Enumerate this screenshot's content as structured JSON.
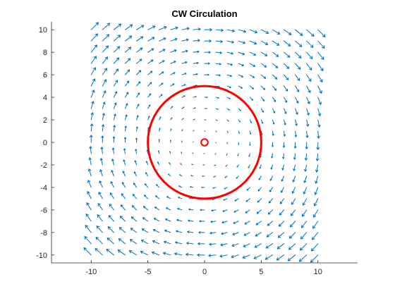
{
  "chart_data": {
    "type": "quiver",
    "title": "CW Circulation",
    "xlabel": "",
    "ylabel": "",
    "xlim": [
      -13.5,
      13.5
    ],
    "ylim": [
      -10.7,
      10.7
    ],
    "x_ticks": [
      -10,
      -5,
      0,
      5,
      10
    ],
    "y_ticks": [
      -10,
      -8,
      -6,
      -4,
      -2,
      0,
      2,
      4,
      6,
      8,
      10
    ],
    "grid": false,
    "vector_field": {
      "x_range": [
        -10,
        10
      ],
      "y_range": [
        -10,
        10
      ],
      "step": 1,
      "u_formula": "y",
      "v_formula": "-x",
      "direction": "clockwise",
      "color": "#0072BD"
    },
    "overlays": [
      {
        "name": "circle",
        "center": [
          0,
          0
        ],
        "radius": 5,
        "color": "#FF0000"
      },
      {
        "name": "center-marker",
        "center": [
          0,
          0
        ],
        "radius": 0.3,
        "color": "#FF0000"
      }
    ]
  }
}
